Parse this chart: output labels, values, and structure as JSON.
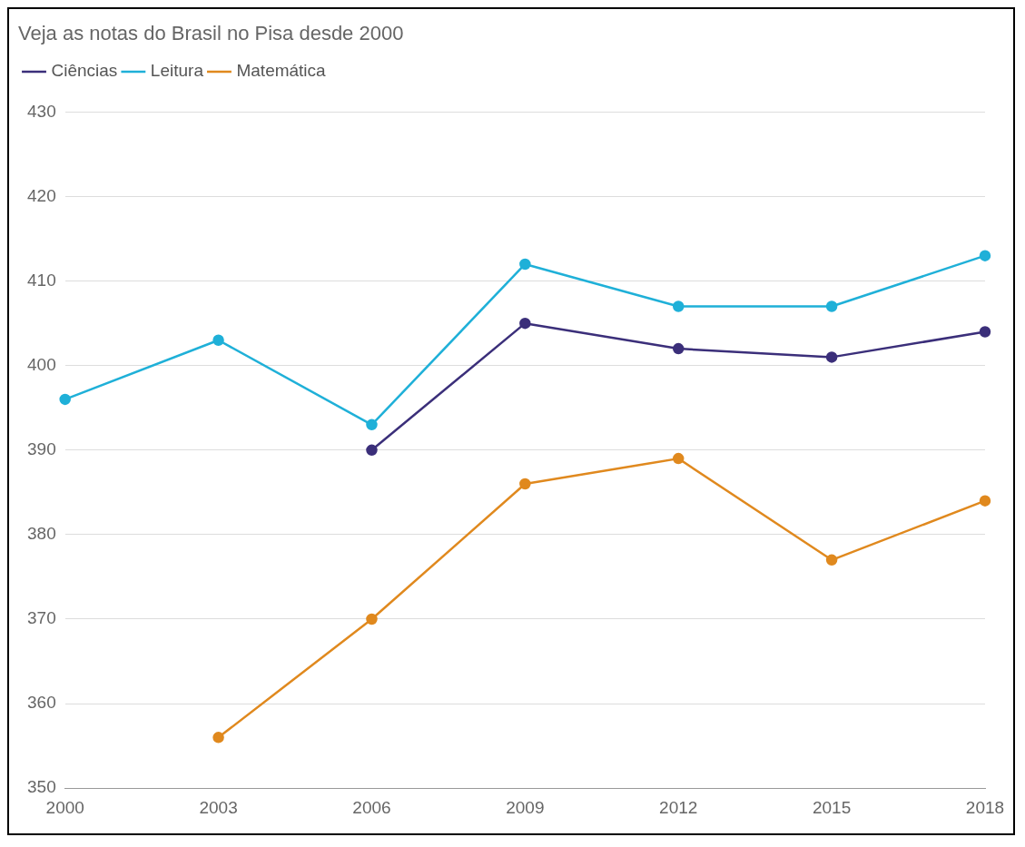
{
  "chart_data": {
    "type": "line",
    "title": "Veja as notas do Brasil no Pisa desde 2000",
    "categories": [
      "2000",
      "2003",
      "2006",
      "2009",
      "2012",
      "2015",
      "2018"
    ],
    "series": [
      {
        "name": "Ciências",
        "color": "#3b2f7a",
        "values": [
          null,
          null,
          390,
          405,
          402,
          401,
          404
        ]
      },
      {
        "name": "Leitura",
        "color": "#1fb0d8",
        "values": [
          396,
          403,
          393,
          412,
          407,
          407,
          413
        ]
      },
      {
        "name": "Matemática",
        "color": "#e0891e",
        "values": [
          null,
          356,
          370,
          386,
          389,
          377,
          384
        ]
      }
    ],
    "ylim": [
      350,
      430
    ],
    "yticks": [
      350,
      360,
      370,
      380,
      390,
      400,
      410,
      420,
      430
    ],
    "grid": "y",
    "legend": "top left",
    "marker": "circle",
    "line_style": "solid"
  }
}
